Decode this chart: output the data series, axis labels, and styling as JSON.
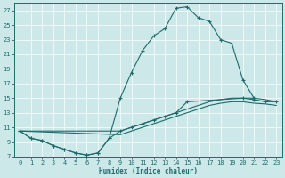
{
  "bg_color": "#cce8e8",
  "line_color": "#1f6b6b",
  "xlabel": "Humidex (Indice chaleur)",
  "xlim": [
    -0.5,
    23.5
  ],
  "ylim": [
    7,
    28
  ],
  "xticks": [
    0,
    1,
    2,
    3,
    4,
    5,
    6,
    7,
    8,
    9,
    10,
    11,
    12,
    13,
    14,
    15,
    16,
    17,
    18,
    19,
    20,
    21,
    22,
    23
  ],
  "yticks": [
    7,
    9,
    11,
    13,
    15,
    17,
    19,
    21,
    23,
    25,
    27
  ],
  "curve1_x": [
    0,
    1,
    2,
    3,
    4,
    5,
    6,
    7,
    8,
    9,
    10,
    11,
    12,
    13,
    14,
    15,
    16,
    17,
    18,
    19,
    20,
    21
  ],
  "curve1_y": [
    10.5,
    9.5,
    9.2,
    8.5,
    8.0,
    7.5,
    7.2,
    7.5,
    9.5,
    15.0,
    18.5,
    21.5,
    23.5,
    24.5,
    27.3,
    27.5,
    26.0,
    25.5,
    23.0,
    22.5,
    17.5,
    15.0
  ],
  "curve2_x": [
    0,
    1,
    2,
    3,
    4,
    5,
    6,
    7,
    8,
    9,
    10,
    11,
    12,
    13,
    14,
    15,
    20,
    21,
    22,
    23
  ],
  "curve2_y": [
    10.5,
    9.5,
    9.2,
    8.5,
    8.0,
    7.5,
    7.2,
    7.5,
    9.5,
    10.5,
    11.0,
    11.5,
    12.0,
    12.5,
    13.0,
    14.5,
    15.0,
    14.8,
    14.5,
    14.5
  ],
  "curve3_x": [
    0,
    9,
    10,
    11,
    12,
    13,
    14,
    15,
    16,
    17,
    18,
    19,
    20,
    21,
    22,
    23
  ],
  "curve3_y": [
    10.5,
    10.5,
    11.0,
    11.5,
    12.0,
    12.5,
    13.0,
    13.5,
    14.0,
    14.5,
    14.8,
    15.0,
    15.0,
    15.0,
    14.8,
    14.5
  ],
  "curve4_x": [
    0,
    9,
    10,
    11,
    12,
    13,
    14,
    15,
    16,
    17,
    18,
    19,
    20,
    21,
    22,
    23
  ],
  "curve4_y": [
    10.5,
    10.0,
    10.5,
    11.0,
    11.5,
    12.0,
    12.5,
    13.0,
    13.5,
    14.0,
    14.3,
    14.5,
    14.5,
    14.3,
    14.2,
    14.0
  ]
}
